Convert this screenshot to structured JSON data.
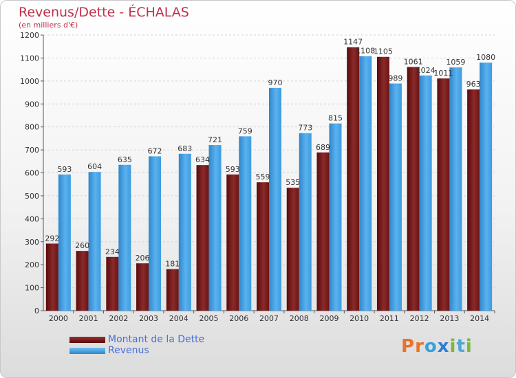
{
  "title": "Revenus/Dette - ÉCHALAS",
  "subtitle": "(en milliers d'€)",
  "legend": [
    {
      "label": "Montant de la Dette",
      "color": "#7a1a1a"
    },
    {
      "label": "Revenus",
      "color": "#3d9be0"
    }
  ],
  "logo": {
    "letters": [
      "P",
      "r",
      "o",
      "x",
      "i",
      "t",
      "i"
    ],
    "colors": [
      "#e8732a",
      "#e8732a",
      "#3aa0d8",
      "#2a7fd0",
      "#7ab83a",
      "#4aa8d8",
      "#7ab83a"
    ]
  },
  "chart_data": {
    "type": "bar",
    "categories": [
      "2000",
      "2001",
      "2002",
      "2003",
      "2004",
      "2005",
      "2006",
      "2007",
      "2008",
      "2009",
      "2010",
      "2011",
      "2012",
      "2013",
      "2014"
    ],
    "series": [
      {
        "name": "Montant de la Dette",
        "color": "#7a1a1a",
        "values": [
          292,
          260,
          234,
          206,
          181,
          634,
          593,
          559,
          535,
          689,
          1147,
          1105,
          1061,
          1011,
          963
        ]
      },
      {
        "name": "Revenus",
        "color": "#3d9be0",
        "values": [
          593,
          604,
          635,
          672,
          683,
          721,
          759,
          970,
          773,
          815,
          1108,
          989,
          1024,
          1059,
          1080
        ]
      }
    ],
    "ylim": [
      0,
      1200
    ],
    "yticks": [
      0,
      100,
      200,
      300,
      400,
      500,
      600,
      700,
      800,
      900,
      1000,
      1100,
      1200
    ],
    "grid": true
  }
}
